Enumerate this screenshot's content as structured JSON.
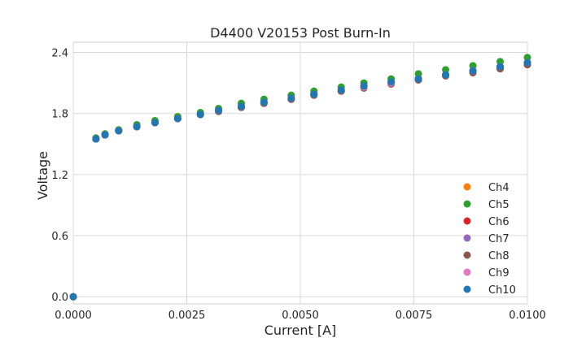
{
  "chart_data": {
    "type": "scatter",
    "title": "D4400 V20153 Post Burn-In",
    "xlabel": "Current [A]",
    "ylabel": "Voltage",
    "xlim": [
      0,
      0.01
    ],
    "ylim": [
      -0.07,
      2.5
    ],
    "x_ticks": [
      "0.0000",
      "0.0025",
      "0.0050",
      "0.0075",
      "0.0100"
    ],
    "y_ticks": [
      "0.0",
      "0.6",
      "1.2",
      "1.8",
      "2.4"
    ],
    "grid": true,
    "legend_position": "bottom-right",
    "x": [
      0,
      0.0005,
      0.0007,
      0.001,
      0.0014,
      0.0018,
      0.0023,
      0.0028,
      0.0032,
      0.0037,
      0.0042,
      0.0048,
      0.0053,
      0.0059,
      0.0064,
      0.007,
      0.0076,
      0.0082,
      0.0088,
      0.0094,
      0.01
    ],
    "series": [
      {
        "name": "Ch4",
        "color": "#ff7f0e",
        "values": [
          0,
          1.55,
          1.59,
          1.63,
          1.67,
          1.71,
          1.75,
          1.79,
          1.83,
          1.87,
          1.91,
          1.95,
          1.99,
          2.03,
          2.07,
          2.1,
          2.14,
          2.18,
          2.22,
          2.25,
          2.29
        ]
      },
      {
        "name": "Ch5",
        "color": "#2ca02c",
        "values": [
          0,
          1.56,
          1.6,
          1.64,
          1.69,
          1.73,
          1.77,
          1.81,
          1.85,
          1.9,
          1.94,
          1.98,
          2.02,
          2.06,
          2.1,
          2.14,
          2.19,
          2.23,
          2.27,
          2.31,
          2.35
        ]
      },
      {
        "name": "Ch6",
        "color": "#d62728",
        "values": [
          0,
          1.55,
          1.59,
          1.63,
          1.67,
          1.71,
          1.75,
          1.79,
          1.83,
          1.86,
          1.9,
          1.94,
          1.98,
          2.02,
          2.06,
          2.09,
          2.13,
          2.17,
          2.21,
          2.24,
          2.28
        ]
      },
      {
        "name": "Ch7",
        "color": "#9467bd",
        "values": [
          0,
          1.55,
          1.59,
          1.63,
          1.67,
          1.71,
          1.75,
          1.79,
          1.83,
          1.87,
          1.91,
          1.95,
          1.99,
          2.03,
          2.07,
          2.1,
          2.14,
          2.18,
          2.22,
          2.26,
          2.29
        ]
      },
      {
        "name": "Ch8",
        "color": "#8c564b",
        "values": [
          0,
          1.55,
          1.59,
          1.63,
          1.67,
          1.71,
          1.75,
          1.79,
          1.82,
          1.86,
          1.9,
          1.94,
          1.98,
          2.02,
          2.05,
          2.09,
          2.13,
          2.17,
          2.2,
          2.24,
          2.28
        ]
      },
      {
        "name": "Ch9",
        "color": "#e377c2",
        "values": [
          0,
          1.55,
          1.59,
          1.63,
          1.67,
          1.71,
          1.75,
          1.79,
          1.83,
          1.87,
          1.91,
          1.95,
          1.99,
          2.03,
          2.06,
          2.1,
          2.14,
          2.18,
          2.22,
          2.26,
          2.3
        ]
      },
      {
        "name": "Ch10",
        "color": "#1f77b4",
        "values": [
          0,
          1.55,
          1.59,
          1.63,
          1.67,
          1.71,
          1.75,
          1.79,
          1.83,
          1.87,
          1.91,
          1.95,
          1.99,
          2.03,
          2.07,
          2.11,
          2.14,
          2.18,
          2.22,
          2.26,
          2.3
        ]
      }
    ]
  }
}
